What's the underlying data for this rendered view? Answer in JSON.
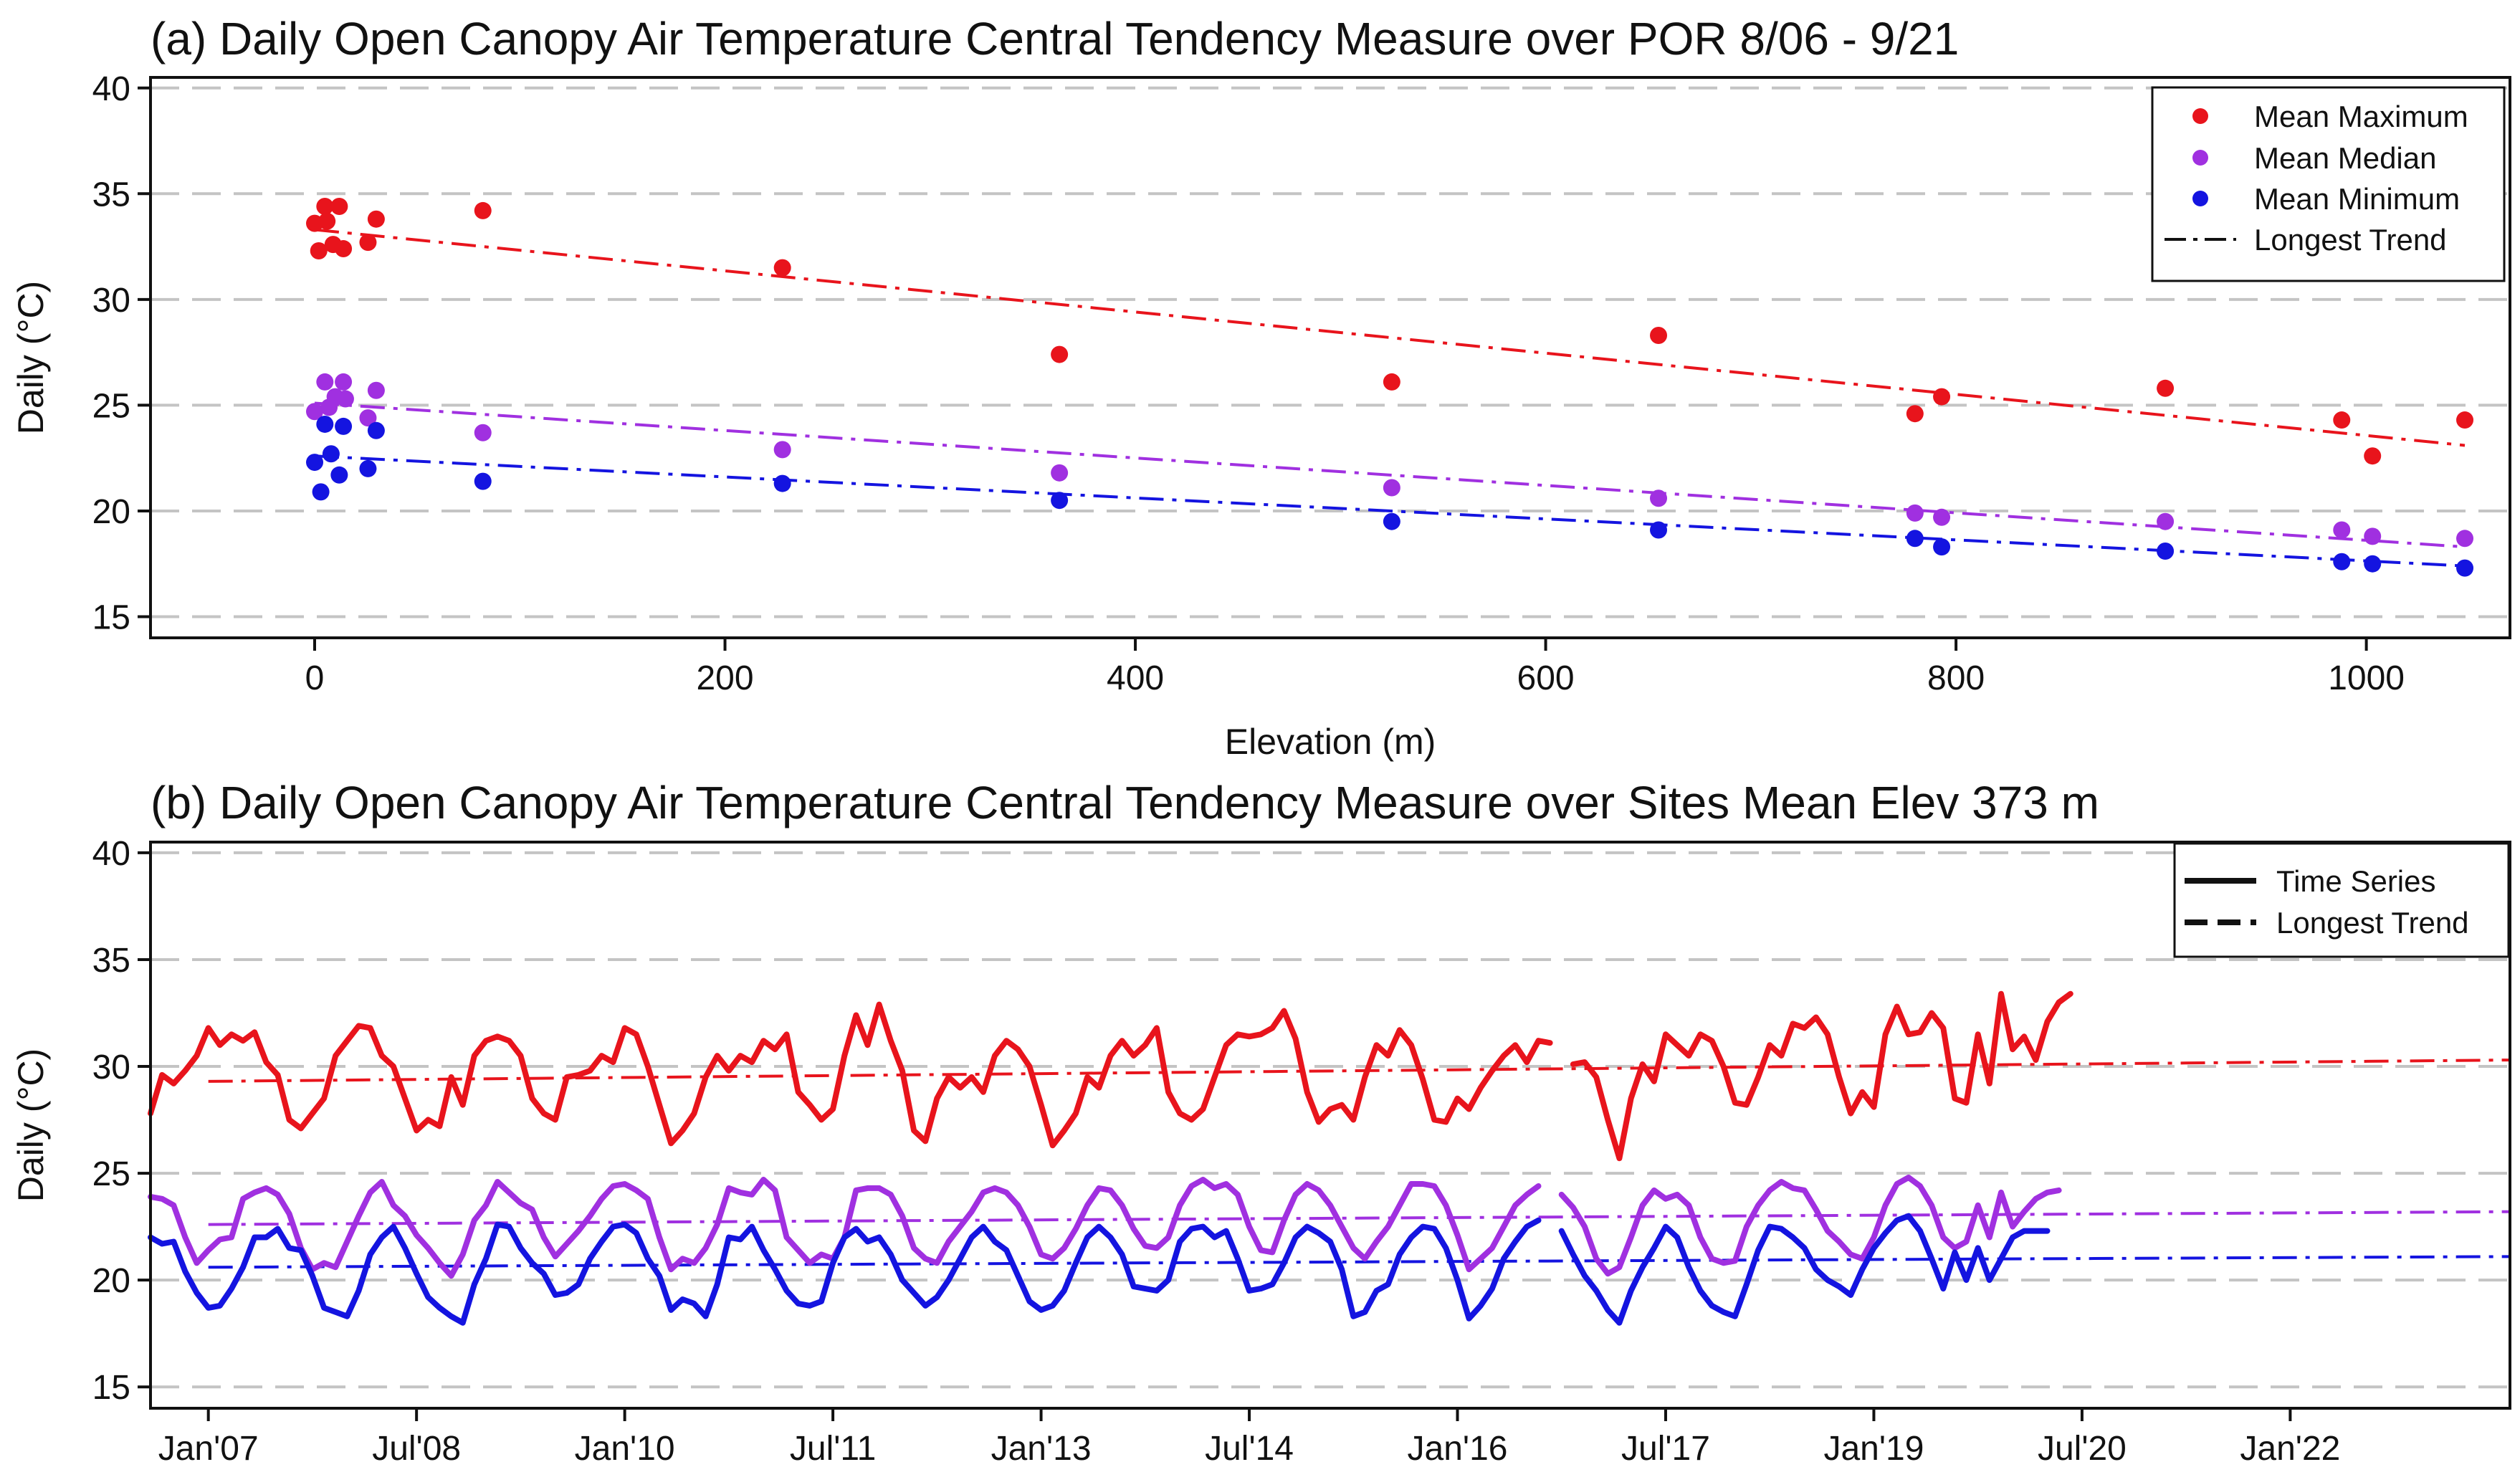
{
  "chart_data": [
    {
      "panel": "a",
      "type": "scatter",
      "title": "(a) Daily Open Canopy Air Temperature Central Tendency Measure over POR 8/06 - 9/21",
      "xlabel": "Elevation (m)",
      "ylabel": "Daily (°C)",
      "xlim": [
        -80,
        1070
      ],
      "ylim": [
        14,
        40.5
      ],
      "xticks": [
        0,
        200,
        400,
        600,
        800,
        1000
      ],
      "yticks": [
        15,
        20,
        25,
        30,
        35,
        40
      ],
      "grid": "horizontal dashed",
      "legend": {
        "position": "top-right",
        "entries": [
          "Mean Maximum",
          "Mean Median",
          "Mean Minimum",
          "Longest Trend"
        ]
      },
      "colors": {
        "max": "#e8141c",
        "median": "#a030e0",
        "min": "#1414e0"
      },
      "series": [
        {
          "name": "Mean Maximum",
          "color": "#e8141c",
          "x": [
            0,
            2,
            5,
            6,
            9,
            12,
            14,
            26,
            30,
            82,
            228,
            363,
            525,
            655,
            780,
            793,
            902,
            988,
            1003,
            1048
          ],
          "y": [
            33.6,
            32.3,
            34.4,
            33.7,
            32.6,
            34.4,
            32.4,
            32.7,
            33.8,
            34.2,
            31.5,
            27.4,
            26.1,
            28.3,
            24.6,
            25.4,
            25.8,
            24.3,
            22.6,
            24.3
          ],
          "trend": {
            "x": [
              0,
              1048
            ],
            "y": [
              33.3,
              23.1
            ]
          }
        },
        {
          "name": "Mean Median",
          "color": "#a030e0",
          "x": [
            0,
            5,
            7,
            10,
            14,
            15,
            26,
            30,
            82,
            228,
            363,
            525,
            655,
            780,
            793,
            902,
            988,
            1003,
            1048
          ],
          "y": [
            24.7,
            26.1,
            24.9,
            25.4,
            26.1,
            25.3,
            24.4,
            25.7,
            23.7,
            22.9,
            21.8,
            21.1,
            20.6,
            19.9,
            19.7,
            19.5,
            19.1,
            18.8,
            18.7
          ],
          "trend": {
            "x": [
              0,
              1048
            ],
            "y": [
              25.1,
              18.3
            ]
          }
        },
        {
          "name": "Mean Minimum",
          "color": "#1414e0",
          "x": [
            0,
            3,
            5,
            8,
            12,
            14,
            26,
            30,
            82,
            228,
            363,
            525,
            655,
            780,
            793,
            902,
            988,
            1003,
            1048
          ],
          "y": [
            22.3,
            20.9,
            24.1,
            22.7,
            21.7,
            24.0,
            22.0,
            23.8,
            21.4,
            21.3,
            20.5,
            19.5,
            19.1,
            18.7,
            18.3,
            18.1,
            17.6,
            17.5,
            17.3
          ],
          "trend": {
            "x": [
              0,
              1048
            ],
            "y": [
              22.6,
              17.4
            ]
          }
        }
      ]
    },
    {
      "panel": "b",
      "type": "line",
      "title": "(b) Daily Open Canopy Air Temperature Central Tendency Measure over Sites Mean Elev 373 m",
      "xlabel": "",
      "ylabel": "Daily (°C)",
      "xlim": [
        "2006-08",
        "2023-08"
      ],
      "ylim": [
        14,
        40.5
      ],
      "xticks": [
        "Jan'07",
        "Jul'08",
        "Jan'10",
        "Jul'11",
        "Jan'13",
        "Jul'14",
        "Jan'16",
        "Jul'17",
        "Jan'19",
        "Jul'20",
        "Jan'22"
      ],
      "yticks": [
        15,
        20,
        25,
        30,
        35,
        40
      ],
      "grid": "horizontal dashed",
      "legend": {
        "position": "top-right",
        "entries": [
          "Time Series",
          "Longest Trend"
        ]
      },
      "x_start": "2006-08",
      "x_step": "1 month",
      "gap_after_month_index": 130,
      "series": [
        {
          "name": "Mean Maximum",
          "color": "#e8141c",
          "values": [
            27.8,
            29.6,
            29.2,
            29.8,
            30.5,
            31.8,
            31.0,
            31.5,
            31.2,
            31.6,
            30.2,
            29.6,
            27.5,
            27.1,
            27.8,
            28.5,
            30.5,
            31.2,
            31.9,
            31.8,
            30.5,
            30.0,
            28.5,
            27.0,
            27.5,
            27.2,
            29.5,
            28.2,
            30.5,
            31.2,
            31.4,
            31.2,
            30.5,
            28.5,
            27.8,
            27.5,
            29.5,
            29.6,
            29.8,
            30.5,
            30.2,
            31.8,
            31.5,
            30.0,
            28.2,
            26.4,
            27.0,
            27.8,
            29.5,
            30.5,
            29.8,
            30.5,
            30.2,
            31.2,
            30.8,
            31.5,
            28.8,
            28.2,
            27.5,
            28.0,
            30.5,
            32.4,
            31.0,
            32.9,
            31.2,
            29.8,
            27.0,
            26.5,
            28.5,
            29.5,
            29.0,
            29.5,
            28.8,
            30.5,
            31.2,
            30.8,
            30.0,
            28.2,
            26.3,
            27.0,
            27.8,
            29.5,
            29.0,
            30.5,
            31.2,
            30.5,
            31.0,
            31.8,
            28.8,
            27.8,
            27.5,
            28.0,
            29.5,
            31.0,
            31.5,
            31.4,
            31.5,
            31.8,
            32.6,
            31.3,
            28.8,
            27.4,
            28.0,
            28.2,
            27.5,
            29.5,
            31.0,
            30.5,
            31.7,
            31.0,
            29.4,
            27.5,
            27.4,
            28.5,
            28.0,
            29.0,
            29.8,
            30.5,
            31.0,
            30.2,
            31.2,
            31.1,
            null,
            30.1,
            30.2,
            29.5,
            27.5,
            25.7,
            28.5,
            30.1,
            29.3,
            31.5,
            31.0,
            30.5,
            31.5,
            31.2,
            30.0,
            28.3,
            28.2,
            29.5,
            31.0,
            30.5,
            32.0,
            31.8,
            32.3,
            31.5,
            29.5,
            27.8,
            28.8,
            28.1,
            31.5,
            32.8,
            31.5,
            31.6,
            32.5,
            31.8,
            28.5,
            28.3,
            31.5,
            29.2,
            33.4,
            30.8,
            31.4,
            30.3,
            32.1,
            33.0,
            33.4
          ]
        },
        {
          "name": "Mean Median",
          "color": "#a030e0",
          "values": [
            23.9,
            23.8,
            23.5,
            22.0,
            20.8,
            21.4,
            21.9,
            22.0,
            23.8,
            24.1,
            24.3,
            24.0,
            23.1,
            21.5,
            20.5,
            20.8,
            20.6,
            21.8,
            23.0,
            24.1,
            24.6,
            23.5,
            23.0,
            22.1,
            21.5,
            20.8,
            20.2,
            21.2,
            22.8,
            23.5,
            24.6,
            24.1,
            23.6,
            23.3,
            22.0,
            21.1,
            21.7,
            22.3,
            23.0,
            23.8,
            24.4,
            24.5,
            24.2,
            23.8,
            22.0,
            20.5,
            21.0,
            20.8,
            21.5,
            22.6,
            24.3,
            24.1,
            24.0,
            24.7,
            24.2,
            22.0,
            21.4,
            20.8,
            21.2,
            21.0,
            22.0,
            24.2,
            24.3,
            24.3,
            24.0,
            23.0,
            21.5,
            21.0,
            20.8,
            21.8,
            22.5,
            23.2,
            24.1,
            24.3,
            24.1,
            23.5,
            22.5,
            21.2,
            21.0,
            21.5,
            22.4,
            23.5,
            24.3,
            24.2,
            23.5,
            22.4,
            21.6,
            21.5,
            22.0,
            23.5,
            24.4,
            24.7,
            24.3,
            24.5,
            24.0,
            22.5,
            21.4,
            21.3,
            22.8,
            24.0,
            24.5,
            24.2,
            23.5,
            22.5,
            21.5,
            21.0,
            21.8,
            22.5,
            23.5,
            24.5,
            24.5,
            24.4,
            23.5,
            22.1,
            20.5,
            21.0,
            21.5,
            22.5,
            23.5,
            24.0,
            24.4,
            null,
            24.0,
            23.4,
            22.5,
            21.0,
            20.3,
            20.6,
            22.0,
            23.5,
            24.2,
            23.8,
            24.0,
            23.5,
            22.0,
            21.0,
            20.8,
            20.9,
            22.5,
            23.5,
            24.2,
            24.6,
            24.3,
            24.2,
            23.3,
            22.3,
            21.8,
            21.2,
            21.0,
            22.0,
            23.5,
            24.5,
            24.8,
            24.4,
            23.5,
            22.0,
            21.5,
            21.8,
            23.5,
            22.0,
            24.1,
            22.5,
            23.2,
            23.8,
            24.1,
            24.2
          ]
        },
        {
          "name": "Mean Minimum",
          "color": "#1414e0",
          "values": [
            22.0,
            21.7,
            21.8,
            20.4,
            19.4,
            18.7,
            18.8,
            19.6,
            20.6,
            22.0,
            22.0,
            22.4,
            21.5,
            21.4,
            20.2,
            18.7,
            18.5,
            18.3,
            19.5,
            21.2,
            22.0,
            22.5,
            21.5,
            20.3,
            19.2,
            18.7,
            18.3,
            18.0,
            19.8,
            21.0,
            22.6,
            22.5,
            21.5,
            20.8,
            20.3,
            19.3,
            19.4,
            19.8,
            21.0,
            21.8,
            22.5,
            22.6,
            22.2,
            21.0,
            20.2,
            18.6,
            19.1,
            18.9,
            18.3,
            19.8,
            22.0,
            21.9,
            22.5,
            21.4,
            20.5,
            19.5,
            18.9,
            18.8,
            19.0,
            20.8,
            22.0,
            22.4,
            21.8,
            22.0,
            21.2,
            20.0,
            19.4,
            18.8,
            19.2,
            20.0,
            21.0,
            22.0,
            22.5,
            21.8,
            21.4,
            20.2,
            19.0,
            18.6,
            18.8,
            19.5,
            20.8,
            22.0,
            22.5,
            22.0,
            21.2,
            19.7,
            19.6,
            19.5,
            20.0,
            21.8,
            22.4,
            22.5,
            22.0,
            22.3,
            21.0,
            19.5,
            19.6,
            19.8,
            20.8,
            22.0,
            22.5,
            22.2,
            21.8,
            20.5,
            18.3,
            18.5,
            19.5,
            19.8,
            21.2,
            22.0,
            22.5,
            22.4,
            21.5,
            20.0,
            18.2,
            18.8,
            19.6,
            21.0,
            21.8,
            22.5,
            22.8,
            null,
            22.3,
            21.2,
            20.2,
            19.5,
            18.6,
            18.0,
            19.5,
            20.6,
            21.5,
            22.5,
            22.0,
            20.6,
            19.5,
            18.8,
            18.5,
            18.3,
            19.8,
            21.4,
            22.5,
            22.4,
            22.0,
            21.5,
            20.5,
            20.0,
            19.7,
            19.3,
            20.5,
            21.5,
            22.2,
            22.8,
            23.0,
            22.3,
            21.0,
            19.6,
            21.3,
            20.0,
            21.5,
            20.0,
            21.0,
            22.0,
            22.3,
            22.3,
            22.3
          ]
        }
      ],
      "trends": [
        {
          "color": "#e8141c",
          "x": [
            "2007-01",
            "2023-08"
          ],
          "y": [
            29.3,
            30.3
          ]
        },
        {
          "color": "#a030e0",
          "x": [
            "2007-01",
            "2023-08"
          ],
          "y": [
            22.6,
            23.2
          ]
        },
        {
          "color": "#1414e0",
          "x": [
            "2007-01",
            "2023-08"
          ],
          "y": [
            20.6,
            21.1
          ]
        }
      ]
    }
  ]
}
